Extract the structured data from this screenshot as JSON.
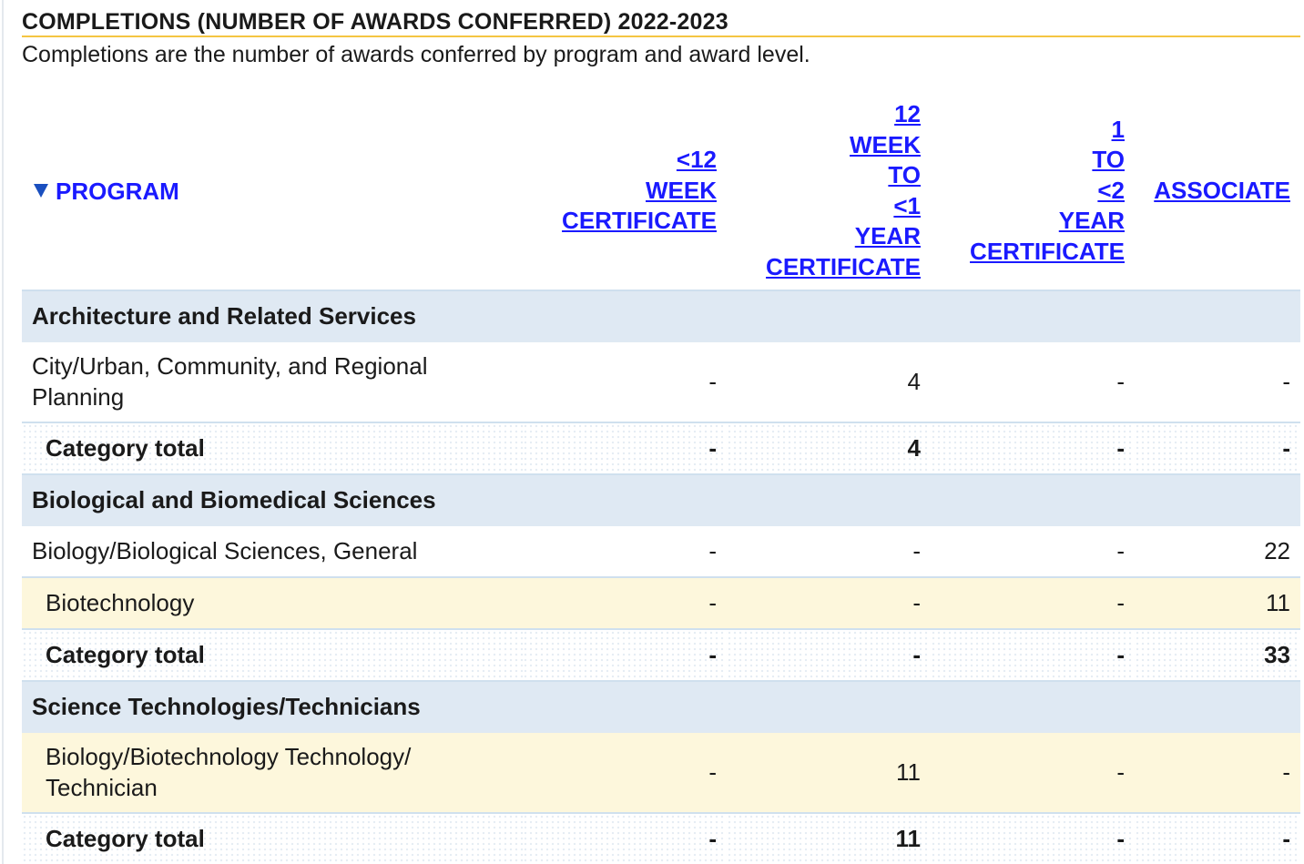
{
  "section": {
    "title": "COMPLETIONS (NUMBER OF AWARDS CONFERRED) 2022-2023",
    "description": "Completions are the number of awards conferred by program and award level."
  },
  "table": {
    "header": {
      "program": "PROGRAM",
      "sort_icon": "triangle-down-icon",
      "col_lt12week": [
        "<12",
        "WEEK",
        "CERTIFICATE"
      ],
      "col_12week_1yr": [
        "12",
        "WEEK",
        "TO",
        "<1",
        "YEAR",
        "CERTIFICATE"
      ],
      "col_1_2yr": [
        "1",
        "TO",
        "<2",
        "YEAR",
        "CERTIFICATE"
      ],
      "col_associate": "ASSOCIATE"
    },
    "categories": [
      {
        "name": "Architecture and Related Services",
        "programs": [
          {
            "name_lines": [
              "City/Urban, Community, and Regional",
              "Planning"
            ],
            "lt12week": "-",
            "wk12_1yr": "4",
            "yr1_2": "-",
            "associate": "-"
          }
        ],
        "total": {
          "label": "Category total",
          "lt12week": "-",
          "wk12_1yr": "4",
          "yr1_2": "-",
          "associate": "-"
        }
      },
      {
        "name": "Biological and Biomedical Sciences",
        "programs": [
          {
            "name_lines": [
              "Biology/Biological Sciences, General"
            ],
            "lt12week": "-",
            "wk12_1yr": "-",
            "yr1_2": "-",
            "associate": "22"
          },
          {
            "name_lines": [
              "Biotechnology"
            ],
            "lt12week": "-",
            "wk12_1yr": "-",
            "yr1_2": "-",
            "associate": "11"
          }
        ],
        "total": {
          "label": "Category total",
          "lt12week": "-",
          "wk12_1yr": "-",
          "yr1_2": "-",
          "associate": "33"
        }
      },
      {
        "name": "Science Technologies/Technicians",
        "programs": [
          {
            "name_lines": [
              "Biology/Biotechnology Technology/",
              "Technician"
            ],
            "lt12week": "-",
            "wk12_1yr": "11",
            "yr1_2": "-",
            "associate": "-"
          }
        ],
        "total": {
          "label": "Category total",
          "lt12week": "-",
          "wk12_1yr": "11",
          "yr1_2": "-",
          "associate": "-"
        }
      }
    ]
  },
  "colors": {
    "title_underline": "#f4c542",
    "category_bg": "#dfe9f3",
    "alt_row_bg": "#fdf7dc",
    "row_border": "#cfe0ee",
    "link": "#1a1aff"
  }
}
